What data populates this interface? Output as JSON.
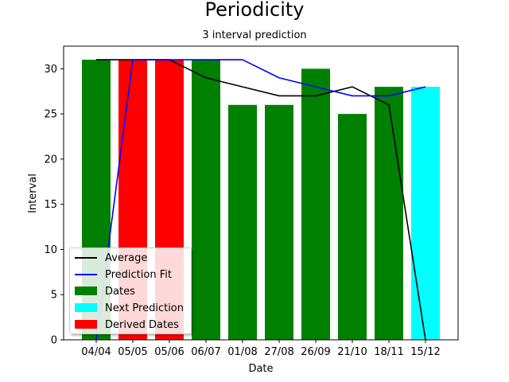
{
  "chart_data": {
    "type": "bar",
    "title": "Periodicity",
    "subtitle": "3 interval prediction",
    "xlabel": "Date",
    "ylabel": "Interval",
    "categories": [
      "04/04",
      "05/05",
      "05/06",
      "06/07",
      "01/08",
      "27/08",
      "26/09",
      "21/10",
      "18/11",
      "15/12"
    ],
    "ylim": [
      0,
      32.5
    ],
    "yticks": [
      0,
      5,
      10,
      15,
      20,
      25,
      30
    ],
    "bars": [
      {
        "category": "04/04",
        "value": 31,
        "series": "Dates"
      },
      {
        "category": "05/05",
        "value": 31,
        "series": "Derived Dates"
      },
      {
        "category": "05/06",
        "value": 31,
        "series": "Derived Dates"
      },
      {
        "category": "06/07",
        "value": 31,
        "series": "Dates"
      },
      {
        "category": "01/08",
        "value": 26,
        "series": "Dates"
      },
      {
        "category": "27/08",
        "value": 26,
        "series": "Dates"
      },
      {
        "category": "26/09",
        "value": 30,
        "series": "Dates"
      },
      {
        "category": "21/10",
        "value": 25,
        "series": "Dates"
      },
      {
        "category": "18/11",
        "value": 28,
        "series": "Dates"
      },
      {
        "category": "15/12",
        "value": 28,
        "series": "Next Prediction"
      }
    ],
    "lines": [
      {
        "name": "Average",
        "color": "#000000",
        "values": [
          31,
          31,
          31,
          29,
          28,
          27,
          27,
          28,
          26,
          0
        ]
      },
      {
        "name": "Prediction Fit",
        "color": "#0000ff",
        "values": [
          0,
          31,
          31,
          31,
          31,
          29,
          28,
          27,
          27,
          28
        ]
      }
    ],
    "series_colors": {
      "Dates": "#008000",
      "Next Prediction": "#00ffff",
      "Derived Dates": "#ff0000"
    },
    "legend": {
      "position": "lower-left",
      "items": [
        {
          "label": "Average",
          "kind": "line",
          "color": "#000000"
        },
        {
          "label": "Prediction Fit",
          "kind": "line",
          "color": "#0000ff"
        },
        {
          "label": "Dates",
          "kind": "patch",
          "color": "#008000"
        },
        {
          "label": "Next Prediction",
          "kind": "patch",
          "color": "#00ffff"
        },
        {
          "label": "Derived Dates",
          "kind": "patch",
          "color": "#ff0000"
        }
      ]
    },
    "grid": false
  }
}
